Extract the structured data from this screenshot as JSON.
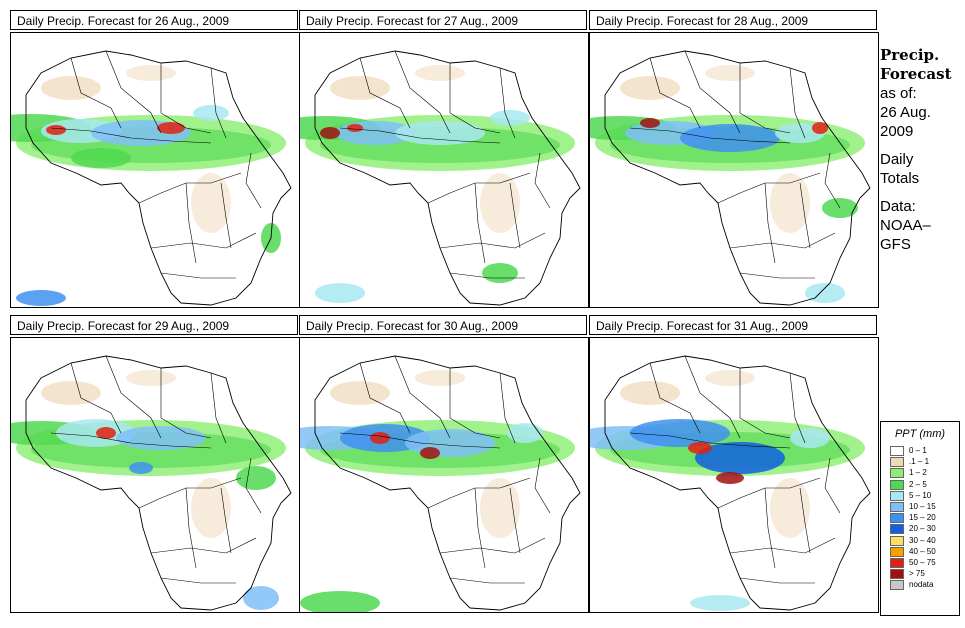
{
  "panels": [
    {
      "title": "Daily Precip. Forecast for  26 Aug., 2009"
    },
    {
      "title": "Daily Precip. Forecast for  27 Aug., 2009"
    },
    {
      "title": "Daily Precip. Forecast for  28 Aug., 2009"
    },
    {
      "title": "Daily Precip. Forecast for  29 Aug., 2009"
    },
    {
      "title": "Daily Precip. Forecast for  30 Aug., 2009"
    },
    {
      "title": "Daily Precip. Forecast for  31 Aug., 2009"
    }
  ],
  "info": {
    "heading_line1": "Precip.",
    "heading_line2": "Forecast",
    "asof_label": "as of:",
    "asof_date_line1": "26 Aug.",
    "asof_date_line2": "2009",
    "totals_line1": "Daily",
    "totals_line2": "Totals",
    "data_label": "Data:",
    "data_source_line1": "NOAA–",
    "data_source_line2": "GFS"
  },
  "legend": {
    "title": "PPT (mm)",
    "items": [
      {
        "label": "0 – 1",
        "color": "#ffffff"
      },
      {
        "label": ".1 – 1",
        "color": "#f0d8b8"
      },
      {
        "label": "1 – 2",
        "color": "#90ee78"
      },
      {
        "label": "2 – 5",
        "color": "#50d850"
      },
      {
        "label": "5 – 10",
        "color": "#a8e8f0"
      },
      {
        "label": "10 – 15",
        "color": "#80c0f8"
      },
      {
        "label": "15 – 20",
        "color": "#4090f0"
      },
      {
        "label": "20 – 30",
        "color": "#1060e0"
      },
      {
        "label": "30 – 40",
        "color": "#f8e060"
      },
      {
        "label": "40 – 50",
        "color": "#f8a000"
      },
      {
        "label": "50 – 75",
        "color": "#e02010"
      },
      {
        "label": "> 75",
        "color": "#a01010"
      },
      {
        "label": "nodata",
        "color": "#c8c8c8"
      }
    ]
  }
}
